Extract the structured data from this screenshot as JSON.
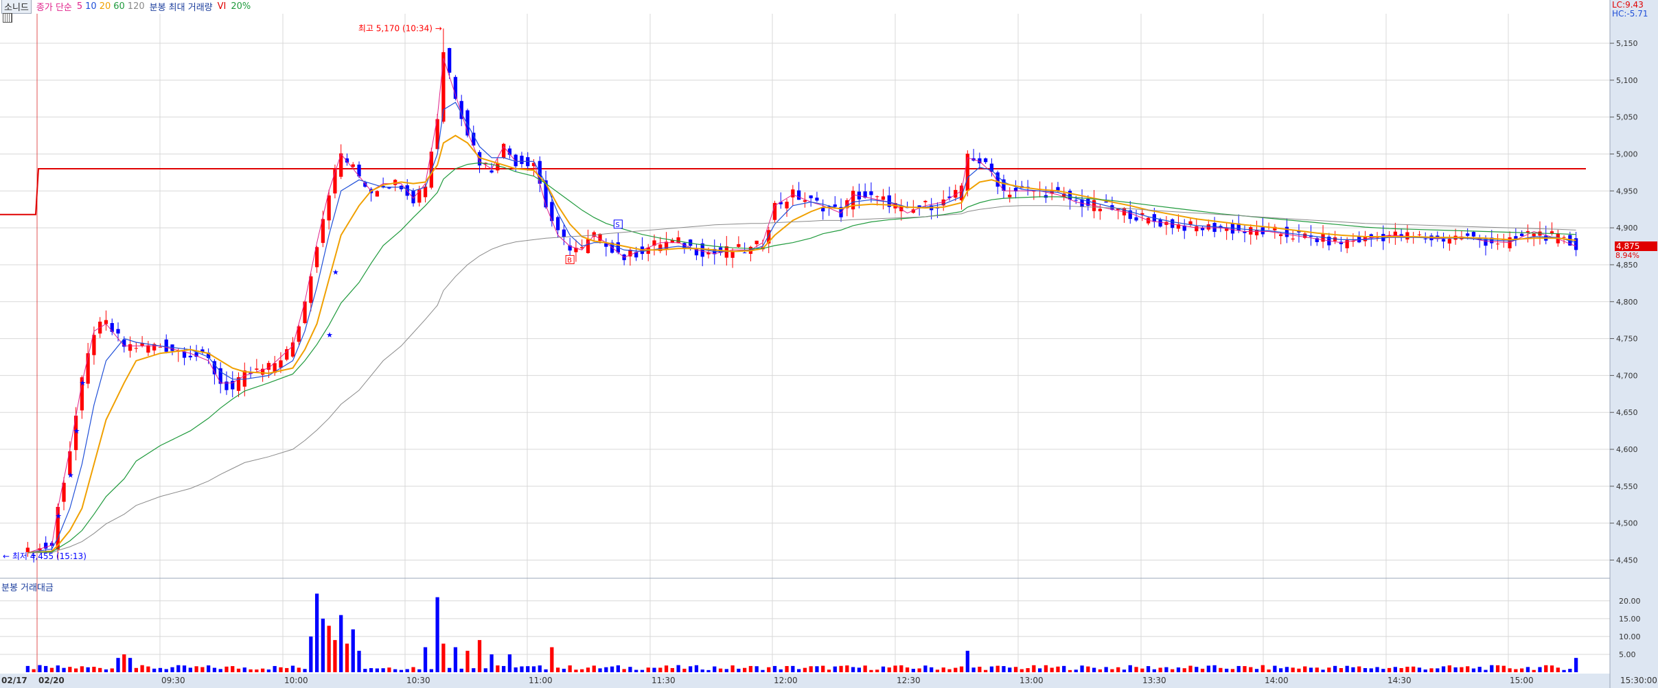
{
  "header": {
    "stock_name": "소니드",
    "ma_label": "종가 단순",
    "ma_periods": [
      "5",
      "10",
      "20",
      "60",
      "120"
    ],
    "vol_label": "분봉 최대 거래량",
    "vi_label": "VI",
    "pct_label": "20%"
  },
  "right_top": {
    "lc": "LC:9.43",
    "hc": "HC:-5.71"
  },
  "price_tag": {
    "price": "4,875",
    "pct": "8.94%"
  },
  "volume_panel": {
    "title": "분봉 거래대금"
  },
  "annotations": {
    "high": "최고 5,170 (10:34)",
    "low": "최저 4,455 (15:13)",
    "buy_mark": "B",
    "sell_mark": "S"
  },
  "colors": {
    "up": "#ff0000",
    "down": "#0000ff",
    "ma5": "#e0208a",
    "ma10": "#1f4fd8",
    "ma20": "#f0a000",
    "ma60": "#1f9a3c",
    "ma120": "#8a8a8a",
    "ref_line": "#e00000",
    "grid": "#d8d8d8",
    "axis_bg": "#dde6f2"
  },
  "chart_data": [
    {
      "type": "candlestick",
      "title": "",
      "ylim": [
        4430,
        5190
      ],
      "y_ticks": [
        "5,150",
        "5,100",
        "5,050",
        "5,000",
        "4,950",
        "4,900",
        "4,850",
        "4,800",
        "4,750",
        "4,700",
        "4,650",
        "4,600",
        "4,550",
        "4,500",
        "4,450"
      ],
      "x_ticks": [
        "02/17",
        "02/20",
        "09:30",
        "10:00",
        "10:30",
        "11:00",
        "11:30",
        "12:00",
        "12:30",
        "13:00",
        "13:30",
        "14:00",
        "14:30",
        "15:00",
        "15:30:00"
      ],
      "reference_line": 4980,
      "prev_day_close": 4918,
      "high": 5170,
      "low": 4455,
      "last": 4875,
      "anchors": [
        [
          0,
          4460
        ],
        [
          4,
          4470
        ],
        [
          5,
          4520
        ],
        [
          7,
          4600
        ],
        [
          9,
          4690
        ],
        [
          11,
          4760
        ],
        [
          13,
          4770
        ],
        [
          16,
          4740
        ],
        [
          18,
          4740
        ],
        [
          22,
          4740
        ],
        [
          27,
          4730
        ],
        [
          30,
          4720
        ],
        [
          32,
          4690
        ],
        [
          34,
          4680
        ],
        [
          36,
          4700
        ],
        [
          40,
          4710
        ],
        [
          44,
          4740
        ],
        [
          46,
          4800
        ],
        [
          48,
          4880
        ],
        [
          50,
          4950
        ],
        [
          52,
          5000
        ],
        [
          55,
          4970
        ],
        [
          57,
          4950
        ],
        [
          59,
          4960
        ],
        [
          62,
          4960
        ],
        [
          64,
          4940
        ],
        [
          66,
          4960
        ],
        [
          68,
          5050
        ],
        [
          69,
          5140
        ],
        [
          71,
          5080
        ],
        [
          73,
          5030
        ],
        [
          75,
          4990
        ],
        [
          77,
          4980
        ],
        [
          79,
          5010
        ],
        [
          81,
          4990
        ],
        [
          84,
          4990
        ],
        [
          86,
          4930
        ],
        [
          88,
          4890
        ],
        [
          90,
          4875
        ],
        [
          92,
          4870
        ],
        [
          94,
          4890
        ],
        [
          96,
          4880
        ],
        [
          99,
          4860
        ],
        [
          102,
          4870
        ],
        [
          105,
          4880
        ],
        [
          108,
          4880
        ],
        [
          111,
          4870
        ],
        [
          114,
          4865
        ],
        [
          117,
          4870
        ],
        [
          120,
          4870
        ],
        [
          122,
          4880
        ],
        [
          124,
          4930
        ],
        [
          127,
          4945
        ],
        [
          130,
          4935
        ],
        [
          132,
          4930
        ],
        [
          135,
          4920
        ],
        [
          137,
          4945
        ],
        [
          140,
          4940
        ],
        [
          143,
          4935
        ],
        [
          146,
          4920
        ],
        [
          149,
          4930
        ],
        [
          152,
          4935
        ],
        [
          155,
          4950
        ],
        [
          156,
          5000
        ],
        [
          158,
          4990
        ],
        [
          160,
          4975
        ],
        [
          162,
          4950
        ],
        [
          165,
          4950
        ],
        [
          168,
          4950
        ],
        [
          171,
          4945
        ],
        [
          174,
          4935
        ],
        [
          177,
          4930
        ],
        [
          180,
          4925
        ],
        [
          183,
          4920
        ],
        [
          186,
          4910
        ],
        [
          190,
          4905
        ],
        [
          194,
          4900
        ],
        [
          198,
          4900
        ],
        [
          202,
          4895
        ],
        [
          206,
          4895
        ],
        [
          210,
          4890
        ],
        [
          214,
          4885
        ],
        [
          218,
          4880
        ],
        [
          222,
          4885
        ],
        [
          226,
          4890
        ],
        [
          230,
          4888
        ],
        [
          234,
          4885
        ],
        [
          238,
          4888
        ],
        [
          242,
          4882
        ],
        [
          246,
          4880
        ],
        [
          250,
          4895
        ],
        [
          254,
          4885
        ],
        [
          257,
          4875
        ]
      ],
      "ma_series": [
        {
          "name": "5",
          "values": [
            4460,
            4470,
            4520,
            4600,
            4690,
            4760,
            4770,
            4740,
            4740,
            4740,
            4730,
            4720,
            4690,
            4690,
            4700,
            4710,
            4740,
            4800,
            4880,
            4950,
            5000,
            4970,
            4950,
            4960,
            4960,
            4940,
            4960,
            5050,
            5130,
            5080,
            5030,
            4990,
            4980,
            5010,
            4990,
            4990,
            4930,
            4890,
            4875,
            4870,
            4890,
            4880,
            4860,
            4870,
            4880,
            4880,
            4870,
            4865,
            4870,
            4870,
            4880,
            4930,
            4945,
            4935,
            4930,
            4920,
            4945,
            4940,
            4935,
            4920,
            4930,
            4935,
            4950,
            4995,
            4990,
            4975,
            4950,
            4950,
            4950,
            4945,
            4935,
            4930,
            4925,
            4920,
            4910,
            4905,
            4900,
            4900,
            4895,
            4895,
            4890,
            4885,
            4880,
            4885,
            4890,
            4888,
            4885,
            4888,
            4882,
            4880,
            4895,
            4885,
            4875
          ]
        },
        {
          "name": "10",
          "values": [
            4460,
            4465,
            4480,
            4520,
            4580,
            4660,
            4720,
            4750,
            4745,
            4740,
            4735,
            4725,
            4705,
            4695,
            4695,
            4700,
            4720,
            4760,
            4820,
            4890,
            4950,
            4965,
            4960,
            4955,
            4955,
            4950,
            4955,
            5000,
            5060,
            5070,
            5040,
            5010,
            4995,
            4995,
            4990,
            4990,
            4960,
            4920,
            4890,
            4875,
            4880,
            4880,
            4870,
            4868,
            4872,
            4875,
            4872,
            4868,
            4868,
            4870,
            4875,
            4905,
            4930,
            4935,
            4932,
            4925,
            4935,
            4938,
            4935,
            4928,
            4928,
            4932,
            4942,
            4968,
            4982,
            4978,
            4962,
            4952,
            4950,
            4948,
            4940,
            4934,
            4928,
            4922,
            4915,
            4908,
            4903,
            4901,
            4898,
            4896,
            4892,
            4888,
            4884,
            4884,
            4887,
            4887,
            4886,
            4886,
            4884,
            4882,
            4888,
            4887,
            4880
          ]
        },
        {
          "name": "20",
          "values": [
            4460,
            4462,
            4470,
            4490,
            4520,
            4580,
            4640,
            4690,
            4720,
            4730,
            4735,
            4730,
            4720,
            4710,
            4705,
            4703,
            4710,
            4735,
            4770,
            4830,
            4890,
            4930,
            4950,
            4958,
            4962,
            4960,
            4962,
            4985,
            5015,
            5025,
            5015,
            4995,
            4990,
            4985,
            4980,
            4978,
            4960,
            4930,
            4905,
            4888,
            4882,
            4880,
            4875,
            4870,
            4870,
            4872,
            4872,
            4870,
            4868,
            4869,
            4872,
            4890,
            4910,
            4922,
            4928,
            4926,
            4930,
            4932,
            4931,
            4928,
            4927,
            4928,
            4934,
            4950,
            4962,
            4965,
            4960,
            4955,
            4952,
            4950,
            4945,
            4940,
            4935,
            4930,
            4924,
            4918,
            4912,
            4908,
            4904,
            4901,
            4897,
            4893,
            4890,
            4888,
            4888,
            4888,
            4887,
            4887,
            4886,
            4884,
            4886,
            4886,
            4883
          ]
        },
        {
          "name": "60",
          "values": [
            4460,
            4461,
            4466,
            4476,
            4490,
            4512,
            4536,
            4560,
            4584,
            4605,
            4625,
            4642,
            4656,
            4668,
            4679,
            4690,
            4702,
            4720,
            4742,
            4768,
            4798,
            4826,
            4852,
            4876,
            4897,
            4914,
            4930,
            4948,
            4966,
            4980,
            4986,
            4988,
            4986,
            4982,
            4976,
            4970,
            4960,
            4948,
            4936,
            4924,
            4914,
            4906,
            4898,
            4891,
            4886,
            4882,
            4878,
            4875,
            4873,
            4872,
            4872,
            4876,
            4880,
            4886,
            4892,
            4897,
            4903,
            4908,
            4911,
            4913,
            4915,
            4918,
            4922,
            4928,
            4934,
            4938,
            4940,
            4941,
            4942,
            4942,
            4941,
            4939,
            4937,
            4934,
            4931,
            4927,
            4923,
            4919,
            4916,
            4913,
            4910,
            4907,
            4904,
            4901,
            4899,
            4898,
            4897,
            4896,
            4895,
            4894,
            4893,
            4892,
            4891
          ]
        },
        {
          "name": "120",
          "values": [
            4460,
            4460,
            4463,
            4468,
            4475,
            4486,
            4499,
            4512,
            4524,
            4536,
            4547,
            4557,
            4566,
            4574,
            4582,
            4590,
            4600,
            4612,
            4626,
            4642,
            4661,
            4680,
            4700,
            4720,
            4740,
            4758,
            4776,
            4795,
            4815,
            4834,
            4850,
            4862,
            4871,
            4877,
            4881,
            4884,
            4886,
            4887,
            4888,
            4889,
            4890,
            4892,
            4894,
            4896,
            4898,
            4900,
            4902,
            4904,
            4905,
            4906,
            4906,
            4907,
            4908,
            4909,
            4910,
            4910,
            4911,
            4912,
            4913,
            4914,
            4915,
            4917,
            4919,
            4922,
            4925,
            4927,
            4929,
            4930,
            4930,
            4930,
            4929,
            4928,
            4927,
            4926,
            4924,
            4922,
            4920,
            4918,
            4916,
            4914,
            4912,
            4910,
            4908,
            4906,
            4905,
            4904,
            4903,
            4902,
            4901,
            4900,
            4899,
            4898,
            4897
          ]
        }
      ]
    },
    {
      "type": "bar",
      "title": "분봉 거래대금",
      "ylim": [
        0,
        24
      ],
      "y_ticks": [
        "20.00",
        "15.00",
        "10.00",
        "5.00"
      ],
      "spikes": [
        [
          15,
          4
        ],
        [
          16,
          5
        ],
        [
          17,
          4
        ],
        [
          47,
          10
        ],
        [
          48,
          22
        ],
        [
          49,
          15
        ],
        [
          50,
          13
        ],
        [
          51,
          9
        ],
        [
          52,
          16
        ],
        [
          53,
          8
        ],
        [
          54,
          12
        ],
        [
          55,
          6
        ],
        [
          66,
          7
        ],
        [
          68,
          21
        ],
        [
          69,
          8
        ],
        [
          71,
          7
        ],
        [
          73,
          6
        ],
        [
          75,
          9
        ],
        [
          77,
          5
        ],
        [
          80,
          5
        ],
        [
          87,
          7
        ],
        [
          156,
          6
        ],
        [
          257,
          4
        ]
      ]
    }
  ]
}
